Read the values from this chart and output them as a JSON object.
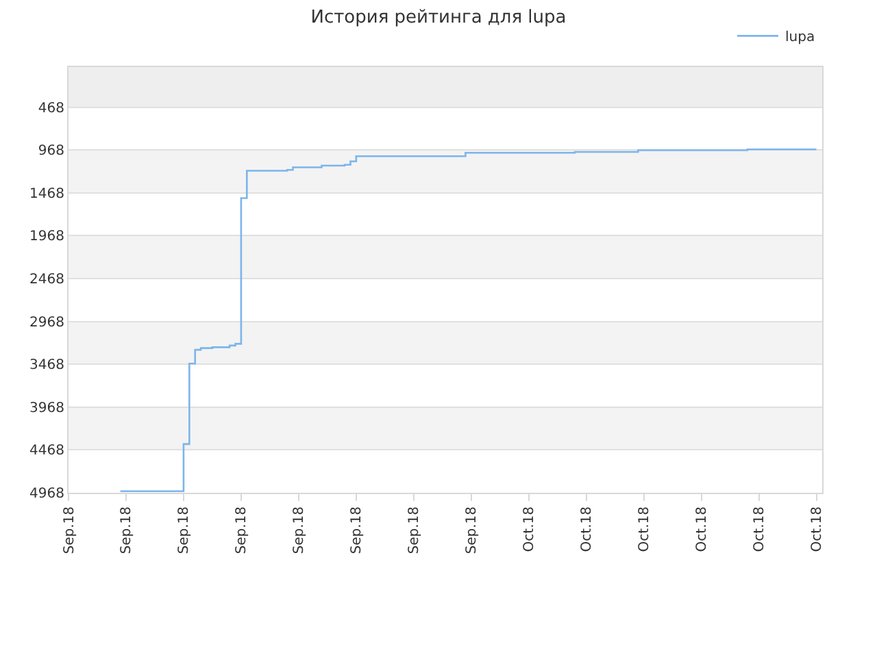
{
  "chart_data": {
    "type": "step",
    "title": "История рейтинга для lupa",
    "categories": [
      "Sep.18",
      null,
      null,
      null,
      null,
      null,
      null,
      null,
      null,
      null,
      "Sep.18",
      null,
      null,
      null,
      null,
      null,
      null,
      null,
      null,
      null,
      "Sep.18",
      null,
      null,
      null,
      null,
      null,
      null,
      null,
      null,
      null,
      "Sep.18",
      null,
      null,
      null,
      null,
      null,
      null,
      null,
      null,
      null,
      "Sep.18",
      null,
      null,
      null,
      null,
      null,
      null,
      null,
      null,
      null,
      "Sep.18",
      null,
      null,
      null,
      null,
      null,
      null,
      null,
      null,
      null,
      "Sep.18",
      null,
      null,
      null,
      null,
      null,
      null,
      null,
      null,
      null,
      "Sep.18",
      null,
      null,
      null,
      null,
      null,
      null,
      null,
      null,
      null,
      "Oct.18",
      null,
      null,
      null,
      null,
      null,
      null,
      null,
      null,
      null,
      "Oct.18",
      null,
      null,
      null,
      null,
      null,
      null,
      null,
      null,
      null,
      "Oct.18",
      null,
      null,
      null,
      null,
      null,
      null,
      null,
      null,
      null,
      "Oct.18",
      null,
      null,
      null,
      null,
      null,
      null,
      null,
      null,
      null,
      "Oct.18",
      null,
      null,
      null,
      null,
      null,
      null,
      null,
      null,
      null,
      "Oct.18",
      null
    ],
    "ylim": [
      4968,
      0
    ],
    "yticks": [
      468,
      968,
      1468,
      1968,
      2468,
      2968,
      3468,
      3968,
      4468,
      4968
    ],
    "series": [
      {
        "name": "lupa",
        "color": "#7cb5ec",
        "values": [
          null,
          null,
          null,
          null,
          null,
          null,
          null,
          null,
          null,
          4950,
          4950,
          4950,
          4950,
          4950,
          4950,
          4950,
          4950,
          4950,
          4950,
          4950,
          4400,
          3460,
          3300,
          3280,
          3280,
          3270,
          3270,
          3270,
          3250,
          3230,
          1530,
          1210,
          1210,
          1210,
          1210,
          1210,
          1210,
          1210,
          1200,
          1170,
          1170,
          1170,
          1170,
          1170,
          1150,
          1150,
          1150,
          1150,
          1140,
          1100,
          1040,
          1040,
          1040,
          1040,
          1040,
          1040,
          1040,
          1040,
          1040,
          1040,
          1040,
          1040,
          1040,
          1040,
          1040,
          1040,
          1040,
          1040,
          1040,
          1000,
          1000,
          1000,
          1000,
          1000,
          1000,
          1000,
          1000,
          1000,
          1000,
          1000,
          1000,
          1000,
          1000,
          1000,
          1000,
          1000,
          1000,
          1000,
          990,
          990,
          990,
          990,
          990,
          990,
          990,
          990,
          990,
          990,
          990,
          970,
          970,
          970,
          970,
          970,
          970,
          970,
          970,
          970,
          970,
          970,
          970,
          970,
          970,
          970,
          970,
          970,
          970,
          970,
          960,
          960,
          960,
          960,
          960,
          960,
          960,
          960,
          960,
          960,
          960,
          960,
          960,
          null
        ]
      }
    ],
    "bands": [
      {
        "axis": "y",
        "from": 0,
        "to": 468,
        "color": "#eeeeee"
      },
      {
        "axis": "y",
        "from": 968,
        "to": 1468,
        "color": "#f3f3f3"
      },
      {
        "axis": "y",
        "from": 1968,
        "to": 2468,
        "color": "#f3f3f3"
      },
      {
        "axis": "y",
        "from": 2968,
        "to": 3468,
        "color": "#f3f3f3"
      },
      {
        "axis": "y",
        "from": 3968,
        "to": 4468,
        "color": "#f3f3f3"
      }
    ],
    "grid": "y",
    "legend": "top right",
    "marker": "none",
    "line_style": "solid"
  }
}
